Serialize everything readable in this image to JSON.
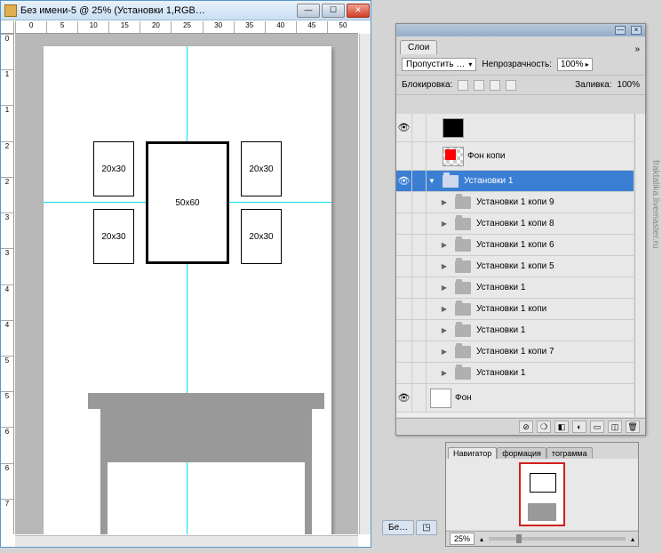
{
  "doc": {
    "title": "Без имени-5 @ 25% (Установки 1,RGB…",
    "ruler_h": [
      "0",
      "5",
      "10",
      "15",
      "20",
      "25",
      "30",
      "35",
      "40",
      "45",
      "50"
    ],
    "ruler_v": [
      "0",
      "1",
      "1",
      "2",
      "2",
      "3",
      "3",
      "4",
      "4",
      "5",
      "5",
      "6",
      "6",
      "7"
    ],
    "frames": {
      "tl": "20x30",
      "tr": "20x30",
      "bl": "20x30",
      "br": "20x30",
      "center": "50x60"
    }
  },
  "layers": {
    "tab": "Слои",
    "blend_label": "Пропустить …",
    "opacity_label": "Непрозрачность:",
    "opacity_val": "100%",
    "lock_label": "Блокировка:",
    "fill_label": "Заливка:",
    "fill_val": "100%",
    "items": [
      {
        "name": "",
        "thumb": "black",
        "eye": true,
        "indent": 1,
        "plain": true
      },
      {
        "name": "Фон копи",
        "thumb": "red",
        "eye": false,
        "indent": 1,
        "plain": true
      },
      {
        "name": "Установки 1",
        "eye": true,
        "selected": true,
        "indent": 0
      },
      {
        "name": "Установки 1 копи 9",
        "eye": false,
        "indent": 1
      },
      {
        "name": "Установки 1 копи 8",
        "eye": false,
        "indent": 1
      },
      {
        "name": "Установки 1 копи 6",
        "eye": false,
        "indent": 1
      },
      {
        "name": "Установки 1 копи 5",
        "eye": false,
        "indent": 1
      },
      {
        "name": "Установки 1",
        "eye": false,
        "indent": 1
      },
      {
        "name": "Установки 1 копи",
        "eye": false,
        "indent": 1
      },
      {
        "name": "Установки 1",
        "eye": false,
        "indent": 1
      },
      {
        "name": "Установки 1 копи 7",
        "eye": false,
        "indent": 1
      },
      {
        "name": "Установки 1",
        "eye": false,
        "indent": 1
      },
      {
        "name": "Фон",
        "thumb": "white",
        "eye": true,
        "indent": 0,
        "plain": true
      }
    ]
  },
  "nav": {
    "tabs": [
      "Навигатор",
      "формация",
      "тограмма"
    ],
    "zoom": "25%"
  },
  "bottom_tab": "Бе…",
  "watermark": "fraktalika.livemaster.ru"
}
